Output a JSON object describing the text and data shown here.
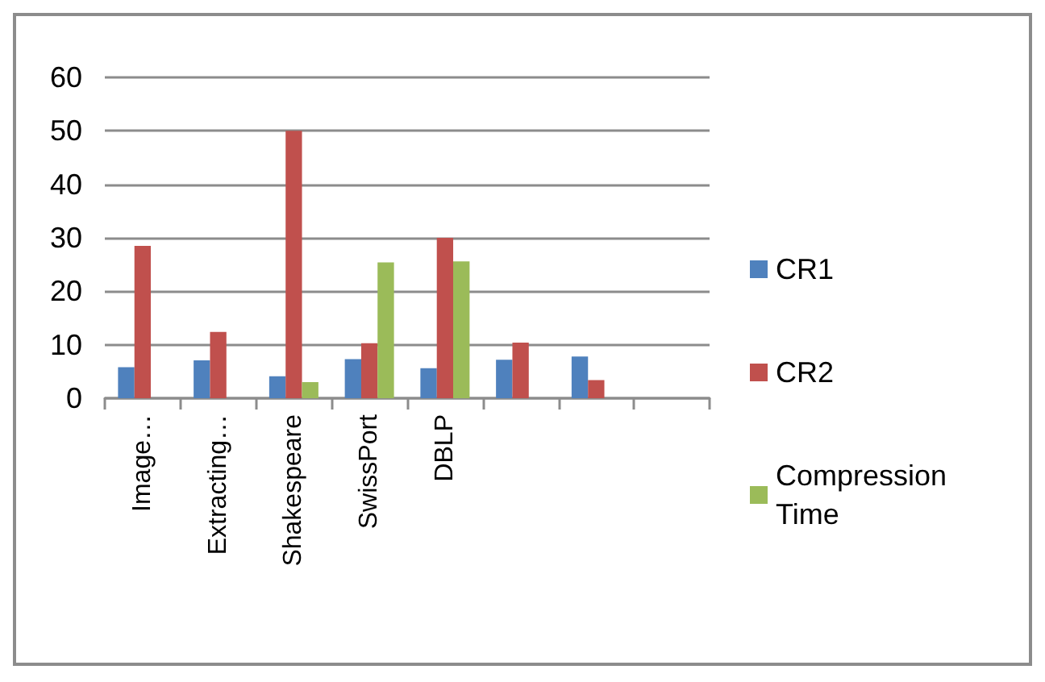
{
  "chart_data": {
    "type": "bar",
    "categories": [
      "Image…",
      "Extracting…",
      "Shakespeare",
      "SwissPort",
      "DBLP",
      null,
      null,
      null
    ],
    "series": [
      {
        "name": "CR1",
        "color": "#4f81bd",
        "values": [
          5.8,
          7.1,
          4.1,
          7.3,
          5.6,
          7.2,
          7.8,
          null
        ]
      },
      {
        "name": "CR2",
        "color": "#c0504d",
        "values": [
          28.5,
          12.4,
          50,
          10.3,
          30,
          10.4,
          3.4,
          null
        ]
      },
      {
        "name": "Compression Time",
        "color": "#9bbb59",
        "values": [
          null,
          null,
          3.0,
          25.4,
          25.6,
          null,
          null,
          null
        ]
      }
    ],
    "ylim": [
      0,
      60
    ],
    "yticks": [
      0,
      10,
      20,
      30,
      40,
      50,
      60
    ],
    "grid": "y",
    "legend": "right"
  }
}
